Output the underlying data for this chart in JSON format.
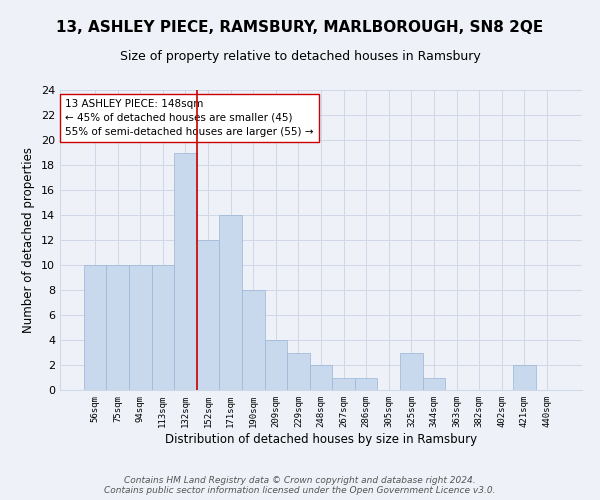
{
  "title": "13, ASHLEY PIECE, RAMSBURY, MARLBOROUGH, SN8 2QE",
  "subtitle": "Size of property relative to detached houses in Ramsbury",
  "xlabel": "Distribution of detached houses by size in Ramsbury",
  "ylabel": "Number of detached properties",
  "categories": [
    "56sqm",
    "75sqm",
    "94sqm",
    "113sqm",
    "132sqm",
    "152sqm",
    "171sqm",
    "190sqm",
    "209sqm",
    "229sqm",
    "248sqm",
    "267sqm",
    "286sqm",
    "305sqm",
    "325sqm",
    "344sqm",
    "363sqm",
    "382sqm",
    "402sqm",
    "421sqm",
    "440sqm"
  ],
  "values": [
    10,
    10,
    10,
    10,
    19,
    12,
    14,
    8,
    4,
    3,
    2,
    1,
    1,
    0,
    3,
    1,
    0,
    0,
    0,
    2,
    0
  ],
  "bar_color": "#c8d9ee",
  "bar_edge_color": "#9ab5d5",
  "grid_color": "#d0d8e8",
  "vline_x": 4.5,
  "vline_color": "#cc0000",
  "annotation_text": "13 ASHLEY PIECE: 148sqm\n← 45% of detached houses are smaller (45)\n55% of semi-detached houses are larger (55) →",
  "annotation_box_color": "white",
  "annotation_box_edge": "#cc0000",
  "ylim": [
    0,
    24
  ],
  "yticks": [
    0,
    2,
    4,
    6,
    8,
    10,
    12,
    14,
    16,
    18,
    20,
    22,
    24
  ],
  "footer_line1": "Contains HM Land Registry data © Crown copyright and database right 2024.",
  "footer_line2": "Contains public sector information licensed under the Open Government Licence v3.0.",
  "background_color": "#eef2f8",
  "title_fontsize": 11,
  "subtitle_fontsize": 9
}
